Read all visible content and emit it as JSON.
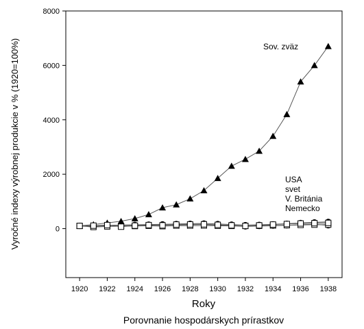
{
  "chart_data": {
    "type": "line",
    "title": "",
    "xlabel": "Roky",
    "subtitle": "Porovnanie hospodárskych prírastkov",
    "ylabel": "Vyročné indexy výrobnej produkcie v % (1920=100%)",
    "xlim": [
      1919,
      1939
    ],
    "ylim": [
      -1800,
      8000
    ],
    "x_ticks": [
      1920,
      1922,
      1924,
      1926,
      1928,
      1930,
      1932,
      1934,
      1936,
      1938
    ],
    "y_ticks": [
      0,
      2000,
      4000,
      6000,
      8000
    ],
    "grid": false,
    "x": [
      1920,
      1921,
      1922,
      1923,
      1924,
      1925,
      1926,
      1927,
      1928,
      1929,
      1930,
      1931,
      1932,
      1933,
      1934,
      1935,
      1936,
      1937,
      1938
    ],
    "series": [
      {
        "name": "Sov. zväz",
        "marker": "triangle",
        "values": [
          100,
          150,
          210,
          270,
          370,
          520,
          770,
          880,
          1100,
          1400,
          1850,
          2300,
          2550,
          2850,
          3400,
          4200,
          5400,
          6000,
          6700
        ]
      },
      {
        "name": "USA",
        "marker": "circle",
        "values": [
          100,
          85,
          110,
          125,
          120,
          130,
          135,
          138,
          145,
          155,
          125,
          105,
          80,
          95,
          105,
          120,
          145,
          160,
          120
        ]
      },
      {
        "name": "svet",
        "marker": "circle",
        "values": [
          100,
          90,
          120,
          130,
          140,
          150,
          160,
          170,
          180,
          190,
          170,
          150,
          130,
          140,
          160,
          180,
          210,
          230,
          250
        ]
      },
      {
        "name": "V. Británia",
        "marker": "square",
        "values": [
          100,
          60,
          80,
          90,
          95,
          105,
          90,
          110,
          110,
          115,
          105,
          100,
          100,
          105,
          115,
          125,
          135,
          145,
          145
        ]
      },
      {
        "name": "Nemecko",
        "marker": "square",
        "values": [
          100,
          110,
          130,
          70,
          110,
          130,
          120,
          150,
          155,
          160,
          140,
          120,
          100,
          120,
          150,
          170,
          190,
          200,
          210
        ]
      }
    ],
    "annotations": {
      "sov": "Sov. zväz",
      "group": [
        "USA",
        "svet",
        "V. Británia",
        "Nemecko"
      ]
    }
  }
}
